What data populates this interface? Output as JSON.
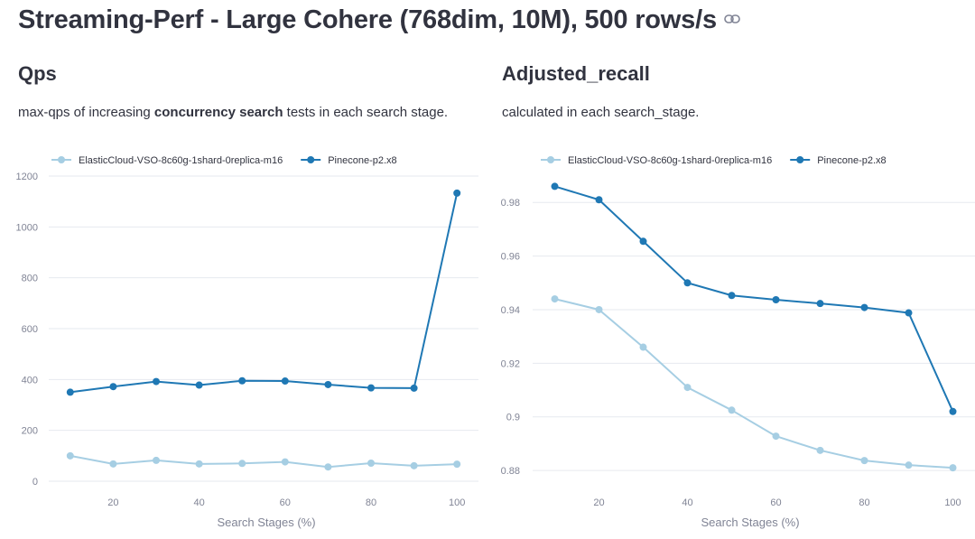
{
  "page": {
    "title": "Streaming-Perf - Large Cohere (768dim, 10M), 500 rows/s",
    "link_icon": "link-icon"
  },
  "panels": [
    {
      "title": "Qps",
      "description": {
        "before": "max-qps of increasing ",
        "bold": "concurrency search",
        "after": " tests in each search stage."
      }
    },
    {
      "title": "Adjusted_recall",
      "description": {
        "before": "calculated in each search_stage.",
        "bold": "",
        "after": ""
      }
    }
  ],
  "colors": {
    "series_light": "#a6cee3",
    "series_dark": "#1f78b4",
    "grid": "#e6e9ef",
    "text_muted": "#808495"
  },
  "chart_data": [
    {
      "type": "line",
      "title": "Qps",
      "xlabel": "Search Stages (%)",
      "ylabel": "",
      "x": [
        10,
        20,
        30,
        40,
        50,
        60,
        70,
        80,
        90,
        100
      ],
      "xticks": [
        "20",
        "40",
        "60",
        "80",
        "100"
      ],
      "yticks": [
        "0",
        "200",
        "400",
        "600",
        "800",
        "1000",
        "1200"
      ],
      "xlim": [
        5,
        105
      ],
      "ylim": [
        0,
        1200
      ],
      "grid": true,
      "legend_position": "top-left",
      "series": [
        {
          "name": "ElasticCloud-VSO-8c60g-1shard-0replica-m16",
          "color": "#a6cee3",
          "values": [
            100,
            68,
            82,
            68,
            70,
            76,
            56,
            71,
            61,
            67
          ]
        },
        {
          "name": "Pinecone-p2.x8",
          "color": "#1f78b4",
          "values": [
            350,
            372,
            392,
            378,
            395,
            394,
            380,
            367,
            366,
            1133
          ]
        }
      ]
    },
    {
      "type": "line",
      "title": "Adjusted_recall",
      "xlabel": "Search Stages (%)",
      "ylabel": "",
      "x": [
        10,
        20,
        30,
        40,
        50,
        60,
        70,
        80,
        90,
        100
      ],
      "xticks": [
        "20",
        "40",
        "60",
        "80",
        "100"
      ],
      "yticks": [
        "0.88",
        "0.9",
        "0.92",
        "0.94",
        "0.96",
        "0.98"
      ],
      "xlim": [
        5,
        105
      ],
      "ylim": [
        0.877,
        0.9885
      ],
      "grid": true,
      "legend_position": "top-left",
      "series": [
        {
          "name": "ElasticCloud-VSO-8c60g-1shard-0replica-m16",
          "color": "#a6cee3",
          "values": [
            0.944,
            0.94,
            0.926,
            0.911,
            0.9025,
            0.8928,
            0.8875,
            0.8837,
            0.882,
            0.881
          ]
        },
        {
          "name": "Pinecone-p2.x8",
          "color": "#1f78b4",
          "values": [
            0.986,
            0.981,
            0.9655,
            0.95,
            0.9453,
            0.9437,
            0.9423,
            0.9408,
            0.9388,
            0.902
          ]
        }
      ]
    }
  ]
}
